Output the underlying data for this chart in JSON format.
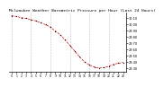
{
  "title": "Milwaukee Weather Barometric Pressure per Hour (Last 24 Hours)",
  "hours": [
    0,
    1,
    2,
    3,
    4,
    5,
    6,
    7,
    8,
    9,
    10,
    11,
    12,
    13,
    14,
    15,
    16,
    17,
    18,
    19,
    20,
    21,
    22,
    23
  ],
  "pressure": [
    30.13,
    30.12,
    30.1,
    30.09,
    30.07,
    30.05,
    30.02,
    29.99,
    29.95,
    29.89,
    29.83,
    29.75,
    29.66,
    29.57,
    29.48,
    29.4,
    29.35,
    29.32,
    29.3,
    29.31,
    29.33,
    29.36,
    29.38,
    29.39
  ],
  "line_color": "#cc0000",
  "marker_color": "#000000",
  "bg_color": "#ffffff",
  "grid_color": "#bbbbbb",
  "text_color": "#000000",
  "ylim_min": 29.24,
  "ylim_max": 30.18,
  "yticks": [
    29.3,
    29.4,
    29.5,
    29.6,
    29.7,
    29.8,
    29.9,
    30.0,
    30.1
  ],
  "xtick_every": 1,
  "title_fontsize": 3.2,
  "tick_fontsize": 2.2,
  "ylabel_fontsize": 2.5
}
